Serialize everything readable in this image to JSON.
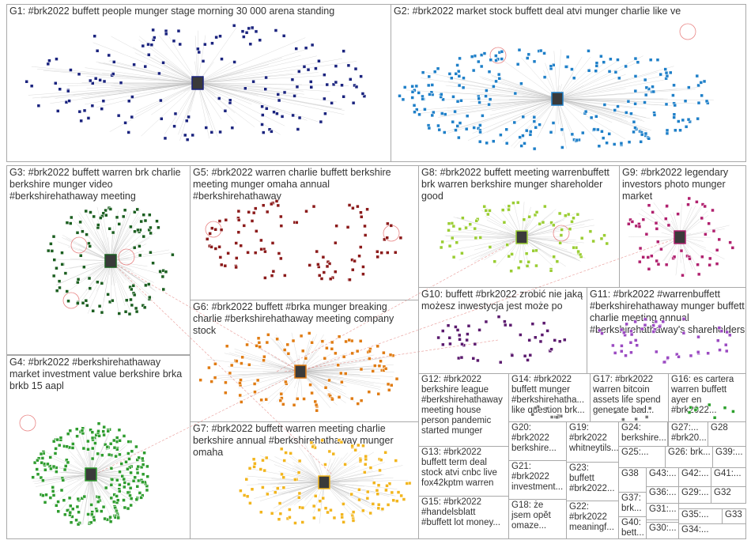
{
  "groups": [
    {
      "id": "G1",
      "label": "G1: #brk2022 buffett people munger stage morning 30 000 arena standing",
      "color": "#1a237e"
    },
    {
      "id": "G2",
      "label": "G2: #brk2022 market stock buffett deal atvi munger charlie like ve",
      "color": "#1e7fc8"
    },
    {
      "id": "G3",
      "label": "G3: #brk2022 buffett warren brk charlie\nberkshire munger video\n#berkshirehathaway meeting",
      "color": "#1b5e20"
    },
    {
      "id": "G4",
      "label": "G4: #brk2022 #berkshirehathaway\nmarket investment value berkshire brka\nbrkb 15 aapl",
      "color": "#2e9c2e"
    },
    {
      "id": "G5",
      "label": "G5: #brk2022 warren charlie buffett berkshire\nmeeting munger omaha annual\n#berkshirehathaway",
      "color": "#8b1a1a"
    },
    {
      "id": "G6",
      "label": "G6: #brk2022 buffett #brka munger breaking\ncharlie #berkshirehathaway meeting company\nstock",
      "color": "#e07b12"
    },
    {
      "id": "G7",
      "label": "G7: #brk2022 buffett warren meeting charlie\nberkshire annual #berkshirehathaway munger\nomaha",
      "color": "#f2b51d"
    },
    {
      "id": "G8",
      "label": "G8: #brk2022 buffett meeting warrenbuffett\nbrk warren berkshire munger shareholder\ngood",
      "color": "#9acd32"
    },
    {
      "id": "G9",
      "label": "G9: #brk2022 legendary\ninvestors photo munger\nmarket",
      "color": "#b0206e"
    },
    {
      "id": "G10",
      "label": "G10: buffett #brk2022 zrobić nie jaką\nmożesz inwestycja jest może po",
      "color": "#5b1a6e"
    },
    {
      "id": "G11",
      "label": "G11: #brk2022 #warrenbuffett\n#berkshirehathaway munger buffett\ncharlie meeting annual\n#berkshirehathaway's shareholders",
      "color": "#9b4ac2"
    },
    {
      "id": "G12",
      "label": "G12: #brk2022\nberkshire league\n#berkshirehathaway\nmeeting house\nperson pandemic\nstarted munger",
      "color": "#777777"
    },
    {
      "id": "G13",
      "label": "G13: #brk2022\nbuffett term deal\nstock atvi cnbc live\nfox42kptm warren",
      "color": "#777777"
    },
    {
      "id": "G14",
      "label": "G14: #brk2022\nbuffett munger\n#berkshirehatha...\nlike question brk...",
      "color": "#777777"
    },
    {
      "id": "G15",
      "label": "G15: #brk2022\n#handelsblatt\n#buffett lot money...",
      "color": "#777777"
    },
    {
      "id": "G16",
      "label": "G16: es cartera\nwarren buffett\nayer en\n#brk2022...",
      "color": "#2ca02c"
    },
    {
      "id": "G17",
      "label": "G17: #brk2022\nwarren bitcoin\nassets life spend\ngenerate bad...",
      "color": "#777777"
    },
    {
      "id": "G18",
      "label": "G18: że\njsem opět\nomaze...",
      "color": "#777777"
    },
    {
      "id": "G19",
      "label": "G19:\n#brk2022\nwhitneytils...",
      "color": "#777777"
    },
    {
      "id": "G20",
      "label": "G20:\n#brk2022\nberkshire...",
      "color": "#777777"
    },
    {
      "id": "G21",
      "label": "G21:\n#brk2022\ninvestment...",
      "color": "#777777"
    },
    {
      "id": "G22",
      "label": "G22:\n#brk2022\nmeaningf...",
      "color": "#777777"
    },
    {
      "id": "G23",
      "label": "G23:\nbuffett\n#brk2022...",
      "color": "#777777"
    },
    {
      "id": "G24",
      "label": "G24:\nberkshire...",
      "color": "#777777"
    },
    {
      "id": "G25",
      "label": "G25:...",
      "color": "#777777"
    },
    {
      "id": "G26",
      "label": "G26: brk...",
      "color": "#777777"
    },
    {
      "id": "G27",
      "label": "G27:...\n#brk20...",
      "color": "#777777"
    },
    {
      "id": "G28",
      "label": "G28",
      "color": "#2ca02c"
    },
    {
      "id": "G29",
      "label": "G29:...",
      "color": "#777777"
    },
    {
      "id": "G30",
      "label": "G30:...",
      "color": "#777777"
    },
    {
      "id": "G31",
      "label": "G31:...",
      "color": "#777777"
    },
    {
      "id": "G32",
      "label": "G32",
      "color": "#777777"
    },
    {
      "id": "G33",
      "label": "G33",
      "color": "#777777"
    },
    {
      "id": "G34",
      "label": "G34:...",
      "color": "#777777"
    },
    {
      "id": "G35",
      "label": "G35:...",
      "color": "#777777"
    },
    {
      "id": "G36",
      "label": "G36:...",
      "color": "#777777"
    },
    {
      "id": "G37",
      "label": "G37:\nbrk...",
      "color": "#777777"
    },
    {
      "id": "G38",
      "label": "G38",
      "color": "#777777"
    },
    {
      "id": "G39",
      "label": "G39:...",
      "color": "#777777"
    },
    {
      "id": "G40",
      "label": "G40:\nbett...",
      "color": "#777777"
    },
    {
      "id": "G41",
      "label": "G41:...",
      "color": "#777777"
    },
    {
      "id": "G42",
      "label": "G42:...",
      "color": "#777777"
    },
    {
      "id": "G43",
      "label": "G43:...",
      "color": "#777777"
    }
  ]
}
